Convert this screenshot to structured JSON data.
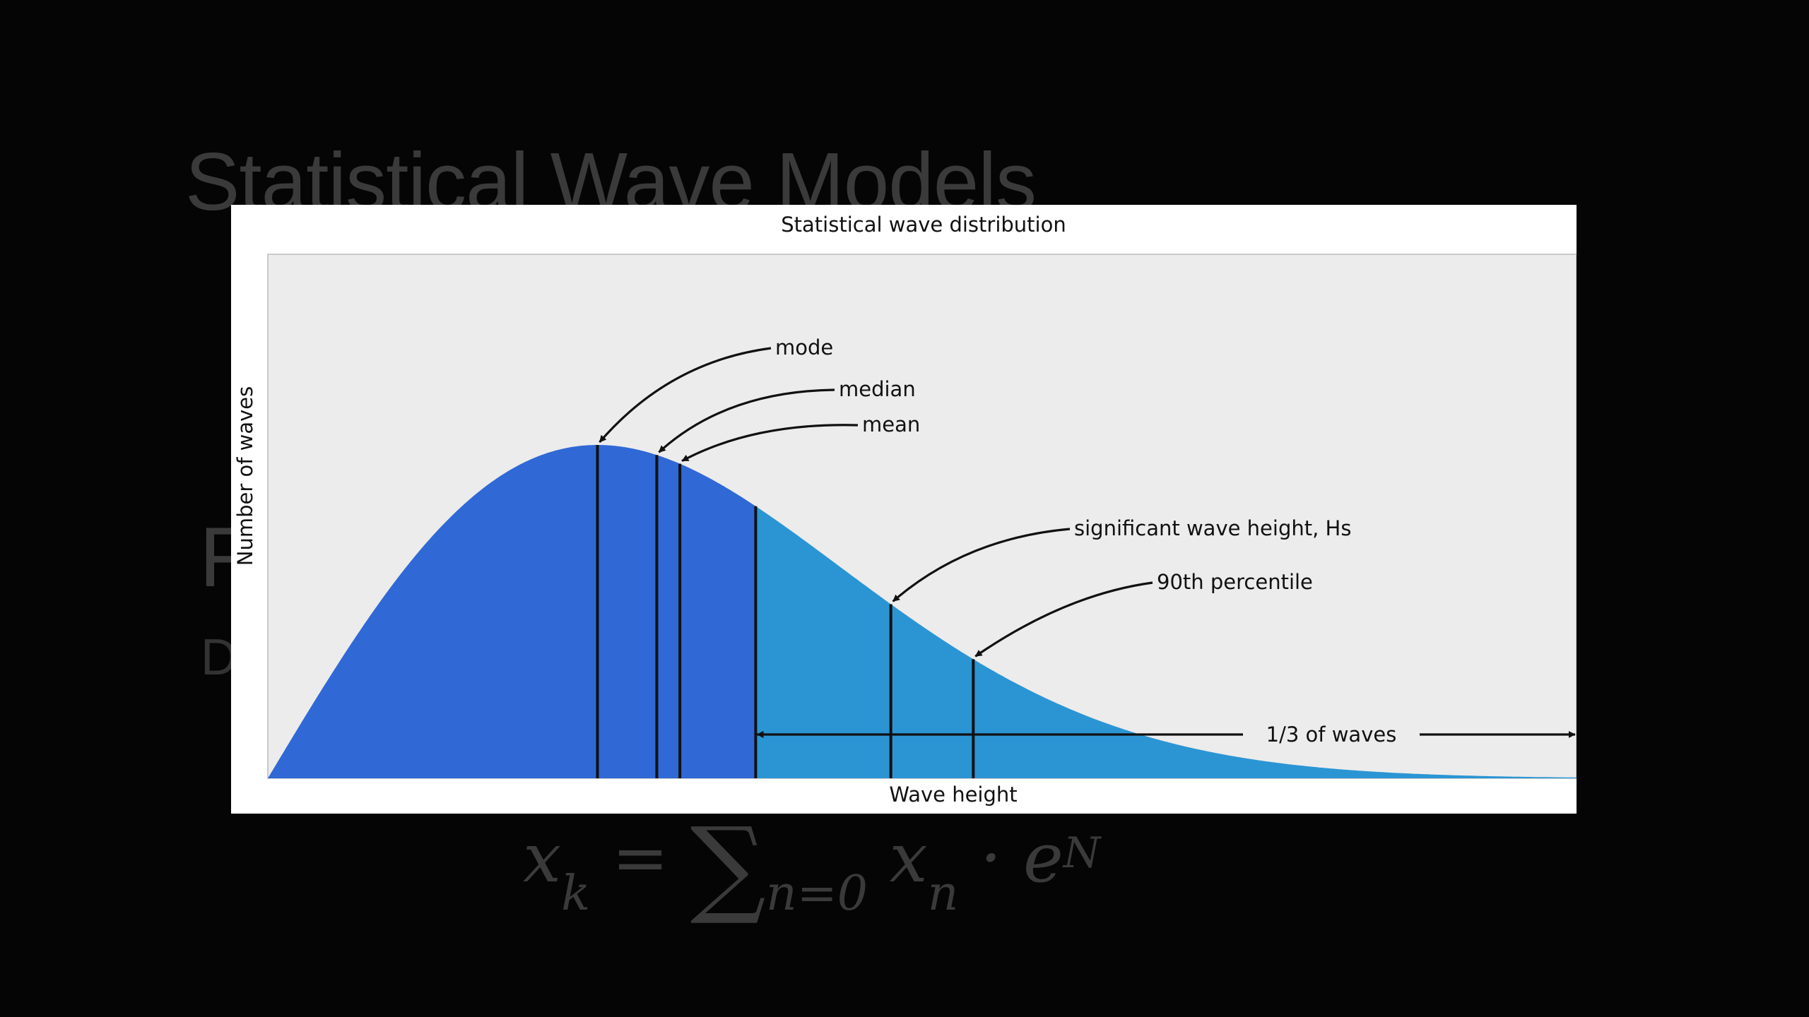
{
  "slide": {
    "title": "Statistical Wave Models",
    "ghost_letter_1": "F",
    "ghost_letter_2": "D",
    "formula": {
      "lhs": "x",
      "lhs_sub": "k",
      "eq": "=",
      "sum": "∑",
      "sum_sub": "n=0",
      "term": "x",
      "term_sub": "n",
      "dot": "·",
      "exp": "e",
      "exp_sup": "N"
    }
  },
  "chart_data": {
    "type": "area",
    "title": "Statistical wave distribution",
    "xlabel": "Wave height",
    "ylabel": "Number of waves",
    "distribution": "rayleigh",
    "xlim": [
      0,
      3.97
    ],
    "ylim": [
      0,
      1.0
    ],
    "markers": [
      {
        "name": "mode",
        "x": 1.0
      },
      {
        "name": "median",
        "x": 1.18
      },
      {
        "name": "mean",
        "x": 1.25
      },
      {
        "name": "significant wave height, Hs",
        "x": 1.89
      },
      {
        "name": "90th percentile",
        "x": 2.14
      }
    ],
    "shade_split_x": 1.48,
    "span_label": "1/3 of waves",
    "colors": {
      "lower_fill": "#3068d6",
      "upper_fill": "#2b95d4",
      "plot_bg": "#ececec",
      "marker_line": "#111111"
    }
  }
}
